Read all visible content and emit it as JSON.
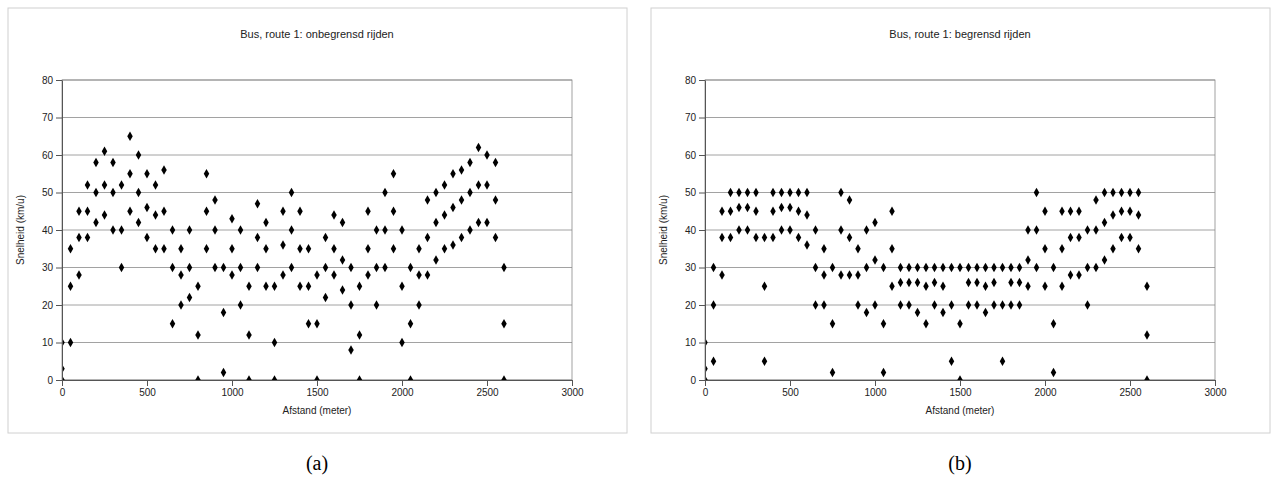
{
  "chart_data": [
    {
      "type": "scatter",
      "title": "Bus, route 1: onbegrensd rijden",
      "x_label": "Afstand (meter)",
      "y_label": "Snelheid (km/u)",
      "caption": "(a)",
      "color": "#000000",
      "marker": "diamond",
      "grid": true,
      "xlim": [
        0,
        3000
      ],
      "xticks": [
        0,
        500,
        1000,
        1500,
        2000,
        2500,
        3000
      ],
      "ylim": [
        0,
        80
      ],
      "yticks": [
        0,
        10,
        20,
        30,
        40,
        50,
        60,
        70,
        80
      ],
      "x": [
        0,
        0,
        0,
        50,
        50,
        50,
        100,
        100,
        100,
        150,
        150,
        150,
        200,
        200,
        200,
        250,
        250,
        250,
        300,
        300,
        300,
        350,
        350,
        350,
        400,
        400,
        400,
        450,
        450,
        450,
        500,
        500,
        500,
        550,
        550,
        550,
        600,
        600,
        600,
        650,
        650,
        650,
        700,
        700,
        700,
        750,
        750,
        750,
        800,
        800,
        800,
        850,
        850,
        850,
        900,
        900,
        900,
        950,
        950,
        950,
        1000,
        1000,
        1000,
        1050,
        1050,
        1050,
        1100,
        1100,
        1100,
        1150,
        1150,
        1150,
        1200,
        1200,
        1200,
        1250,
        1250,
        1250,
        1300,
        1300,
        1300,
        1350,
        1350,
        1350,
        1400,
        1400,
        1400,
        1450,
        1450,
        1450,
        1500,
        1500,
        1500,
        1550,
        1550,
        1550,
        1600,
        1600,
        1600,
        1650,
        1650,
        1650,
        1700,
        1700,
        1700,
        1750,
        1750,
        1750,
        1800,
        1800,
        1800,
        1850,
        1850,
        1850,
        1900,
        1900,
        1900,
        1950,
        1950,
        1950,
        2000,
        2000,
        2000,
        2050,
        2050,
        2050,
        2100,
        2100,
        2100,
        2150,
        2150,
        2150,
        2200,
        2200,
        2200,
        2250,
        2250,
        2250,
        2300,
        2300,
        2300,
        2350,
        2350,
        2350,
        2400,
        2400,
        2400,
        2450,
        2450,
        2450,
        2500,
        2500,
        2500,
        2550,
        2550,
        2550,
        2600,
        2600,
        2600
      ],
      "values": [
        10,
        3,
        0,
        35,
        25,
        10,
        45,
        38,
        28,
        52,
        45,
        38,
        58,
        50,
        42,
        61,
        52,
        44,
        58,
        50,
        40,
        52,
        40,
        30,
        65,
        55,
        45,
        60,
        50,
        42,
        55,
        46,
        38,
        52,
        44,
        35,
        56,
        45,
        35,
        40,
        30,
        15,
        35,
        28,
        20,
        40,
        30,
        22,
        25,
        12,
        0,
        55,
        45,
        35,
        48,
        40,
        30,
        30,
        18,
        2,
        43,
        35,
        28,
        40,
        30,
        20,
        25,
        12,
        0,
        47,
        38,
        30,
        42,
        35,
        25,
        25,
        10,
        0,
        45,
        36,
        28,
        50,
        40,
        30,
        45,
        35,
        25,
        35,
        25,
        15,
        28,
        15,
        0,
        38,
        30,
        22,
        44,
        35,
        28,
        42,
        32,
        24,
        30,
        20,
        8,
        25,
        12,
        0,
        45,
        35,
        28,
        40,
        30,
        20,
        50,
        40,
        30,
        55,
        45,
        35,
        40,
        25,
        10,
        30,
        15,
        0,
        35,
        28,
        20,
        48,
        38,
        28,
        50,
        42,
        32,
        52,
        44,
        35,
        55,
        46,
        36,
        56,
        48,
        38,
        58,
        50,
        40,
        62,
        52,
        42,
        60,
        52,
        42,
        58,
        48,
        38,
        30,
        15,
        0
      ]
    },
    {
      "type": "scatter",
      "title": "Bus, route 1: begrensd rijden",
      "x_label": "Afstand (meter)",
      "y_label": "Snelheid (km/u)",
      "caption": "(b)",
      "color": "#000000",
      "marker": "diamond",
      "grid": true,
      "xlim": [
        0,
        3000
      ],
      "xticks": [
        0,
        500,
        1000,
        1500,
        2000,
        2500,
        3000
      ],
      "ylim": [
        0,
        80
      ],
      "yticks": [
        0,
        10,
        20,
        30,
        40,
        50,
        60,
        70,
        80
      ],
      "x": [
        0,
        0,
        0,
        50,
        50,
        50,
        100,
        100,
        100,
        150,
        150,
        150,
        200,
        200,
        200,
        250,
        250,
        250,
        300,
        300,
        300,
        350,
        350,
        350,
        400,
        400,
        400,
        450,
        450,
        450,
        500,
        500,
        500,
        550,
        550,
        550,
        600,
        600,
        600,
        650,
        650,
        650,
        700,
        700,
        700,
        750,
        750,
        750,
        800,
        800,
        800,
        850,
        850,
        850,
        900,
        900,
        900,
        950,
        950,
        950,
        1000,
        1000,
        1000,
        1050,
        1050,
        1050,
        1100,
        1100,
        1100,
        1150,
        1150,
        1150,
        1200,
        1200,
        1200,
        1250,
        1250,
        1250,
        1300,
        1300,
        1300,
        1350,
        1350,
        1350,
        1400,
        1400,
        1400,
        1450,
        1450,
        1450,
        1500,
        1500,
        1500,
        1550,
        1550,
        1550,
        1600,
        1600,
        1600,
        1650,
        1650,
        1650,
        1700,
        1700,
        1700,
        1750,
        1750,
        1750,
        1800,
        1800,
        1800,
        1850,
        1850,
        1850,
        1900,
        1900,
        1900,
        1950,
        1950,
        1950,
        2000,
        2000,
        2000,
        2050,
        2050,
        2050,
        2100,
        2100,
        2100,
        2150,
        2150,
        2150,
        2200,
        2200,
        2200,
        2250,
        2250,
        2250,
        2300,
        2300,
        2300,
        2350,
        2350,
        2350,
        2400,
        2400,
        2400,
        2450,
        2450,
        2450,
        2500,
        2500,
        2500,
        2550,
        2550,
        2550,
        2600,
        2600,
        2600
      ],
      "values": [
        10,
        3,
        0,
        30,
        20,
        5,
        45,
        38,
        28,
        50,
        45,
        38,
        50,
        46,
        40,
        50,
        46,
        40,
        50,
        45,
        38,
        38,
        25,
        5,
        50,
        45,
        38,
        50,
        46,
        40,
        50,
        46,
        40,
        50,
        45,
        38,
        50,
        44,
        36,
        40,
        30,
        20,
        35,
        28,
        20,
        30,
        15,
        2,
        50,
        40,
        28,
        48,
        38,
        28,
        35,
        28,
        20,
        40,
        30,
        18,
        42,
        32,
        20,
        30,
        15,
        2,
        45,
        35,
        25,
        30,
        26,
        20,
        30,
        26,
        20,
        30,
        26,
        18,
        30,
        25,
        15,
        30,
        26,
        20,
        30,
        25,
        18,
        30,
        20,
        5,
        30,
        15,
        0,
        30,
        26,
        20,
        30,
        26,
        20,
        30,
        25,
        18,
        30,
        26,
        20,
        30,
        20,
        5,
        30,
        26,
        20,
        30,
        26,
        20,
        40,
        32,
        25,
        50,
        40,
        30,
        45,
        35,
        25,
        30,
        15,
        2,
        45,
        35,
        25,
        45,
        38,
        28,
        45,
        38,
        28,
        40,
        30,
        20,
        48,
        40,
        30,
        50,
        42,
        32,
        50,
        44,
        35,
        50,
        45,
        38,
        50,
        45,
        38,
        50,
        44,
        35,
        25,
        12,
        0
      ]
    }
  ]
}
